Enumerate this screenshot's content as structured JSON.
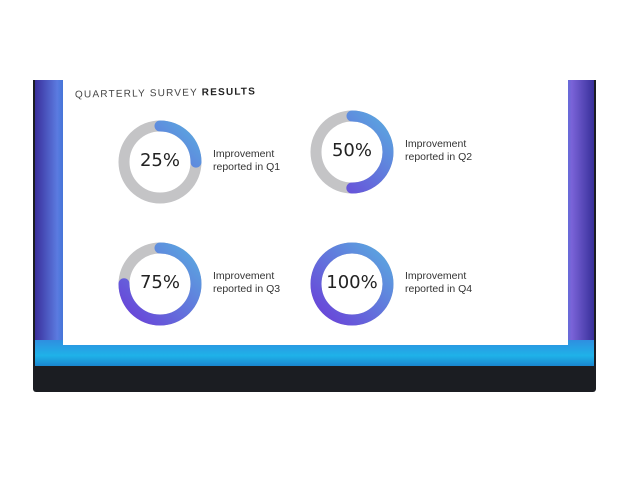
{
  "slide": {
    "title_prefix": "QUARTERLY SURVEY",
    "title_bold": "RESULTS"
  },
  "chart_data": {
    "type": "donut",
    "items": [
      {
        "percent": 25,
        "label_text": "25%",
        "line1": "Improvement",
        "line2": "reported in Q1"
      },
      {
        "percent": 50,
        "label_text": "50%",
        "line1": "Improvement",
        "line2": "reported in Q2"
      },
      {
        "percent": 75,
        "label_text": "75%",
        "line1": "Improvement",
        "line2": "reported in Q3"
      },
      {
        "percent": 100,
        "label_text": "100%",
        "line1": "Improvement",
        "line2": "reported in Q4"
      }
    ]
  },
  "colors": {
    "track": "#c4c4c6",
    "arc_start": "#6a3fd8",
    "arc_end": "#5aaae0",
    "screen": "#2f9ae0",
    "bezel": "#1b1d22"
  }
}
